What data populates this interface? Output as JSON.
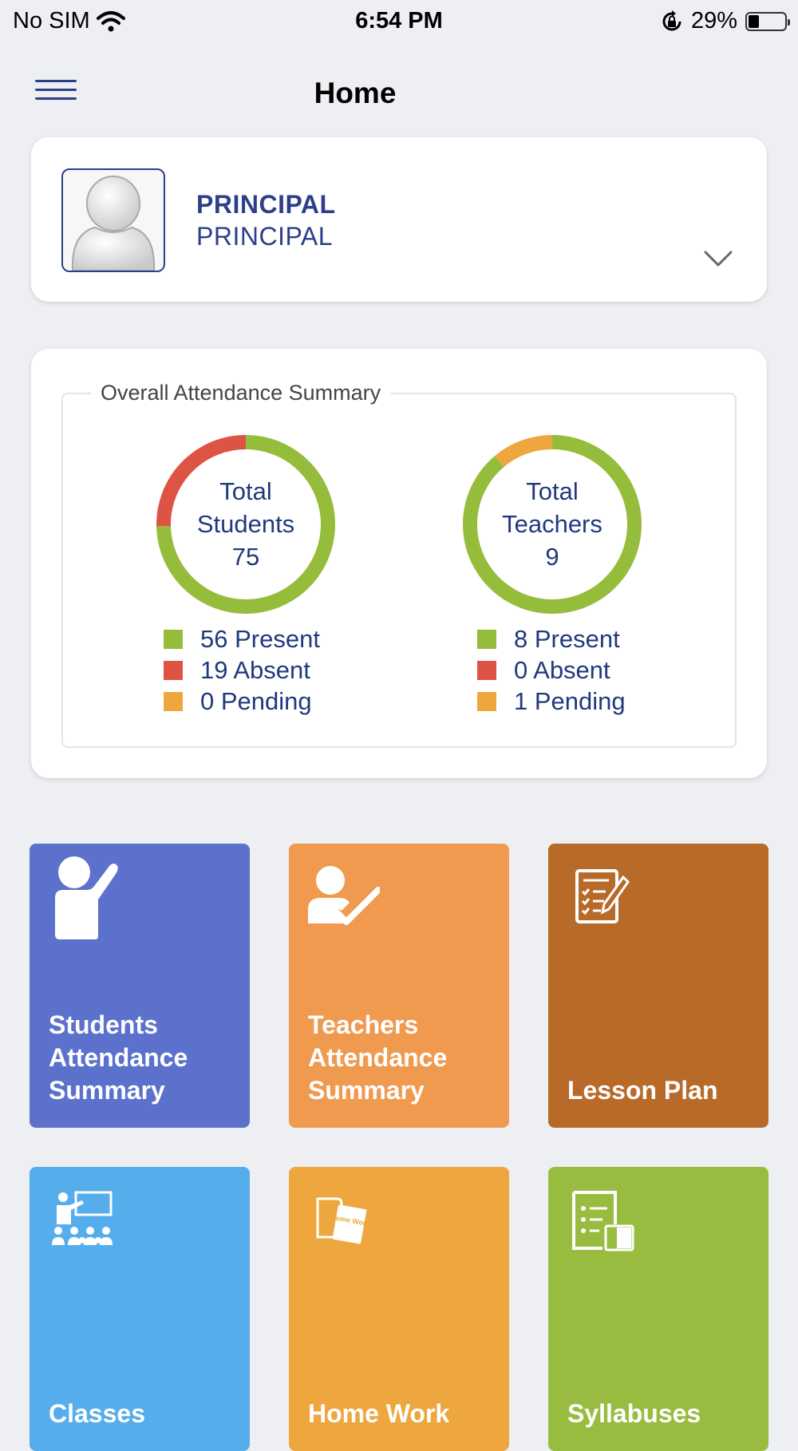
{
  "status_bar": {
    "carrier": "No SIM",
    "time": "6:54 PM",
    "battery": "29%",
    "battery_level": 0.29
  },
  "header": {
    "title": "Home"
  },
  "profile": {
    "name": "PRINCIPAL",
    "role": "PRINCIPAL"
  },
  "attendance": {
    "title": "Overall Attendance Summary",
    "students": {
      "line1": "Total",
      "line2": "Students",
      "total": "75",
      "present": "56 Present",
      "absent": "19 Absent",
      "pending": "0 Pending",
      "values": {
        "present": 56,
        "absent": 19,
        "pending": 0
      }
    },
    "teachers": {
      "line1": "Total",
      "line2": "Teachers",
      "total": "9",
      "present": "8 Present",
      "absent": "0 Absent",
      "pending": "1 Pending",
      "values": {
        "present": 8,
        "absent": 0,
        "pending": 1
      }
    }
  },
  "colors": {
    "present": "#96bc3c",
    "absent": "#de5444",
    "pending": "#eea73f",
    "brand": "#2d3f8a"
  },
  "tiles": [
    {
      "label": "Students Attendance Summary",
      "color": "#5b71cc",
      "icon": "student-raise-hand-icon"
    },
    {
      "label": "Teachers Attendance Summary",
      "color": "#f09a50",
      "icon": "teacher-check-icon"
    },
    {
      "label": "Lesson Plan",
      "color": "#b86a29",
      "icon": "lesson-plan-icon"
    },
    {
      "label": "Classes",
      "color": "#56adec",
      "icon": "classroom-icon"
    },
    {
      "label": "Home Work",
      "color": "#eea73f",
      "icon": "homework-icon"
    },
    {
      "label": "Syllabuses",
      "color": "#98bc40",
      "icon": "syllabus-icon"
    }
  ],
  "homework_icon_text": "Home Work"
}
